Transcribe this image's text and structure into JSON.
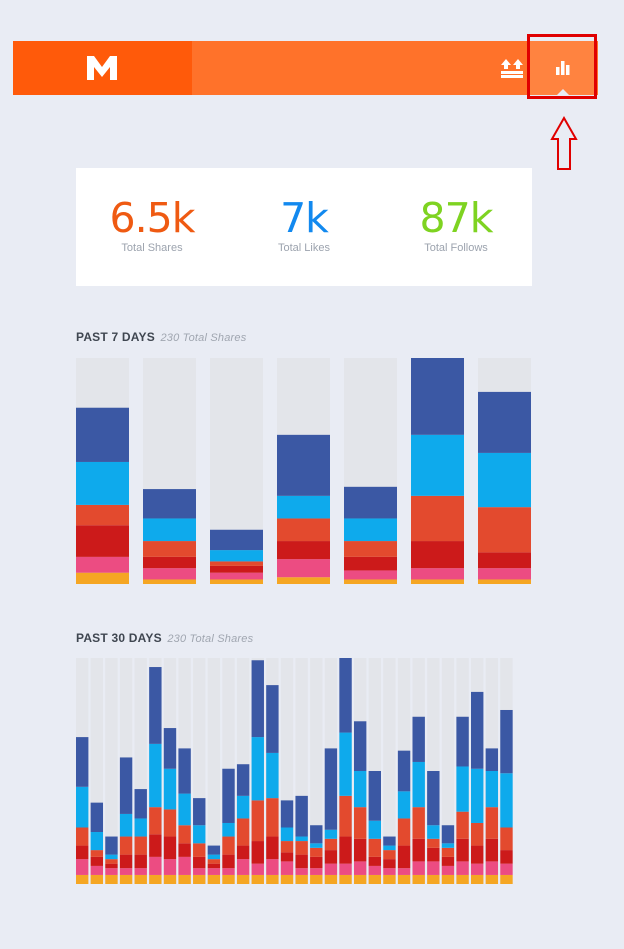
{
  "colors": {
    "background": "#e9ecf4",
    "brand": "#ff5a0a",
    "bar_accent": "#ff722a",
    "highlight": "#e00000"
  },
  "header": {
    "logo_icon": "medium-m-logo",
    "upload_icon": "double-up-arrow-icon",
    "stats_icon": "bar-chart-icon"
  },
  "stats": [
    {
      "value": "6.5k",
      "label": "Total Shares",
      "color": "#ef5a12"
    },
    {
      "value": "7k",
      "label": "Total Likes",
      "color": "#1289ef"
    },
    {
      "value": "87k",
      "label": "Total Follows",
      "color": "#7ed321"
    }
  ],
  "week_section": {
    "title": "PAST 7 DAYS",
    "subtitle": "230 Total Shares"
  },
  "month_section": {
    "title": "PAST 30 DAYS",
    "subtitle": "230 Total Shares"
  },
  "chart_data": [
    {
      "type": "bar",
      "stacked": true,
      "title": "PAST 7 DAYS",
      "segment_colors": [
        "#f5a623",
        "#ec4c82",
        "#cc1a1a",
        "#e34a2e",
        "#0eaaec",
        "#3b58a4"
      ],
      "empty_color": "#e3e5ea",
      "values": [
        [
          5,
          7,
          14,
          9,
          19,
          24
        ],
        [
          2,
          5,
          5,
          7,
          10,
          13
        ],
        [
          2,
          3,
          3,
          2,
          5,
          9
        ],
        [
          3,
          8,
          8,
          10,
          10,
          27
        ],
        [
          2,
          4,
          6,
          7,
          10,
          14
        ],
        [
          2,
          5,
          12,
          20,
          27,
          34
        ],
        [
          2,
          5,
          7,
          20,
          24,
          27
        ]
      ],
      "max": 100
    },
    {
      "type": "bar",
      "stacked": true,
      "title": "PAST 30 DAYS",
      "segment_colors": [
        "#f5a623",
        "#ec4c82",
        "#cc1a1a",
        "#e34a2e",
        "#0eaaec",
        "#3b58a4"
      ],
      "empty_color": "#e3e5ea",
      "values": [
        [
          4,
          7,
          6,
          8,
          18,
          22
        ],
        [
          4,
          4,
          4,
          3,
          8,
          13
        ],
        [
          4,
          3,
          2,
          2,
          2,
          8
        ],
        [
          4,
          3,
          6,
          8,
          10,
          25
        ],
        [
          4,
          3,
          6,
          8,
          8,
          13
        ],
        [
          4,
          8,
          10,
          12,
          28,
          34
        ],
        [
          4,
          7,
          10,
          12,
          18,
          18
        ],
        [
          4,
          8,
          6,
          8,
          14,
          20
        ],
        [
          4,
          3,
          5,
          6,
          8,
          12
        ],
        [
          4,
          3,
          2,
          2,
          2,
          4
        ],
        [
          4,
          3,
          6,
          8,
          6,
          24
        ],
        [
          4,
          7,
          6,
          12,
          10,
          14
        ],
        [
          4,
          5,
          10,
          18,
          28,
          34
        ],
        [
          4,
          7,
          10,
          17,
          20,
          30
        ],
        [
          4,
          6,
          4,
          5,
          6,
          12
        ],
        [
          4,
          3,
          6,
          6,
          2,
          18
        ],
        [
          4,
          3,
          5,
          4,
          2,
          8
        ],
        [
          4,
          5,
          6,
          5,
          4,
          36
        ],
        [
          4,
          5,
          12,
          18,
          28,
          34
        ],
        [
          4,
          6,
          10,
          14,
          16,
          22
        ],
        [
          4,
          4,
          4,
          8,
          8,
          22
        ],
        [
          4,
          3,
          4,
          4,
          2,
          4
        ],
        [
          4,
          3,
          10,
          12,
          12,
          18
        ],
        [
          4,
          6,
          10,
          14,
          20,
          20
        ],
        [
          4,
          6,
          6,
          4,
          6,
          24
        ],
        [
          4,
          4,
          4,
          4,
          2,
          8
        ],
        [
          4,
          6,
          10,
          12,
          20,
          22
        ],
        [
          4,
          5,
          8,
          10,
          24,
          34
        ],
        [
          4,
          6,
          10,
          14,
          16,
          10
        ],
        [
          4,
          5,
          6,
          10,
          24,
          28
        ]
      ],
      "max": 100
    }
  ]
}
